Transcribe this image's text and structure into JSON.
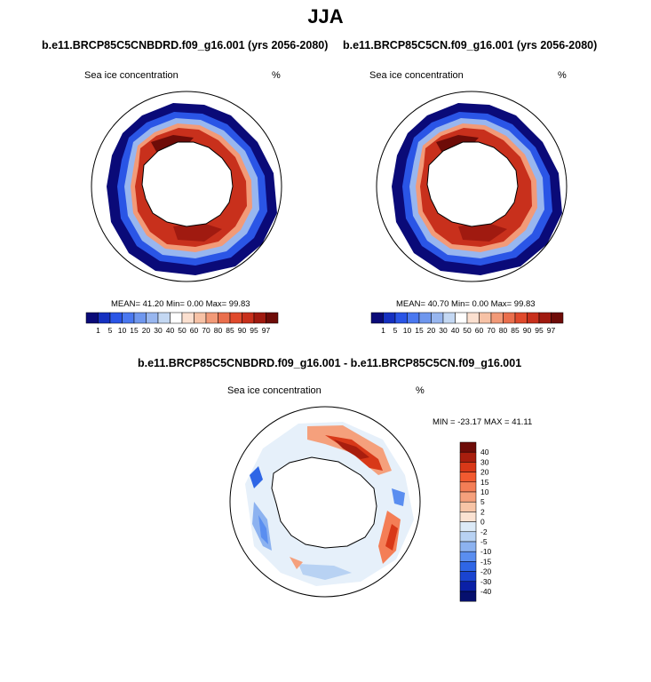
{
  "page_title": "JJA",
  "colors": {
    "scale_a": [
      "#0a0a78",
      "#1530c0",
      "#2a55e6",
      "#4a78f0",
      "#6f97ee",
      "#98b6ef",
      "#c4d8f3",
      "#ffffff",
      "#fbe0d0",
      "#f7c2a6",
      "#f29a78",
      "#ea6f4d",
      "#e04a2c",
      "#c8301c",
      "#a01a10",
      "#6e0c08"
    ],
    "scale_b": [
      "#6e0c08",
      "#a81e0e",
      "#d83818",
      "#f25a30",
      "#f47e56",
      "#f5a07c",
      "#f7c4a6",
      "#fbe2d2",
      "#dceaf7",
      "#b8d2f3",
      "#8cb2f0",
      "#5a8ef0",
      "#2f66e6",
      "#1a44d0",
      "#0a20a6",
      "#06106e"
    ]
  },
  "panels": {
    "left": {
      "title": "b.e11.BRCP85C5CNBDRD.f09_g16.001 (yrs 2056-2080)",
      "variable": "Sea ice concentration",
      "units": "%",
      "stats": "MEAN=  41.20  Min=   0.00  Max=  99.83",
      "colorbar_labels": [
        "1",
        "5",
        "10",
        "15",
        "20",
        "30",
        "40",
        "50",
        "60",
        "70",
        "80",
        "85",
        "90",
        "95",
        "97"
      ]
    },
    "right": {
      "title": "b.e11.BRCP85C5CN.f09_g16.001 (yrs 2056-2080)",
      "variable": "Sea ice concentration",
      "units": "%",
      "stats": "MEAN=  40.70  Min=   0.00  Max=  99.83",
      "colorbar_labels": [
        "1",
        "5",
        "10",
        "15",
        "20",
        "30",
        "40",
        "50",
        "60",
        "70",
        "80",
        "85",
        "90",
        "95",
        "97"
      ]
    },
    "diff": {
      "title": "b.e11.BRCP85C5CNBDRD.f09_g16.001 - b.e11.BRCP85C5CN.f09_g16.001",
      "variable": "Sea ice concentration",
      "units": "%",
      "stats": "MIN = -23.17 MAX =  41.11",
      "colorbar_labels": [
        "40",
        "30",
        "20",
        "15",
        "10",
        "5",
        "2",
        "0",
        "-2",
        "-5",
        "-10",
        "-15",
        "-20",
        "-30",
        "-40"
      ]
    }
  }
}
